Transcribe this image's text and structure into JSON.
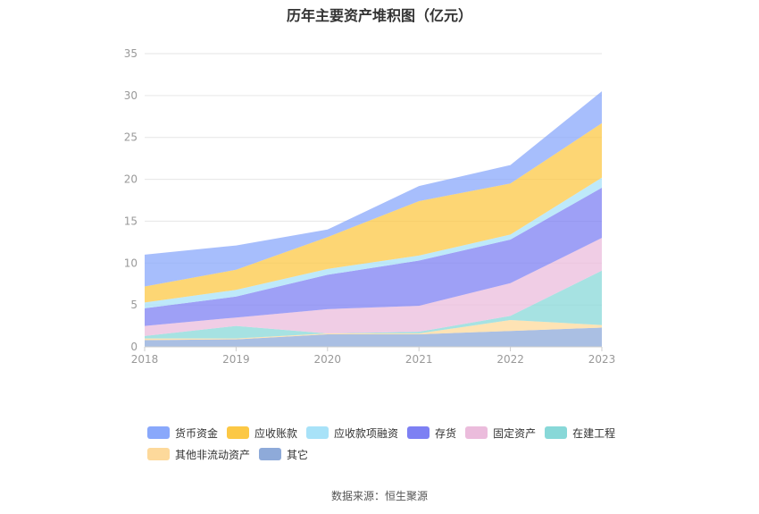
{
  "chart_data": {
    "type": "area",
    "stacked": true,
    "title": "历年主要资产堆积图（亿元）",
    "x": [
      "2018",
      "2019",
      "2020",
      "2021",
      "2022",
      "2023"
    ],
    "ylim": [
      0,
      35
    ],
    "yticks": [
      0,
      5,
      10,
      15,
      20,
      25,
      30,
      35
    ],
    "grid": true,
    "legend_position": "bottom",
    "series": [
      {
        "name": "其它",
        "color": "#8eaad9",
        "values": [
          0.8,
          0.9,
          1.5,
          1.5,
          1.9,
          2.3
        ]
      },
      {
        "name": "其他非流动资产",
        "color": "#fdd99b",
        "values": [
          0.2,
          0.1,
          0.1,
          0.1,
          1.3,
          0.3
        ]
      },
      {
        "name": "在建工程",
        "color": "#88d8d8",
        "values": [
          0.3,
          1.5,
          0.0,
          0.2,
          0.5,
          6.5
        ]
      },
      {
        "name": "固定资产",
        "color": "#ebbcdc",
        "values": [
          1.2,
          1.0,
          2.9,
          3.1,
          3.9,
          3.9
        ]
      },
      {
        "name": "存货",
        "color": "#7d80f3",
        "values": [
          2.1,
          2.5,
          4.1,
          5.4,
          5.2,
          6.0
        ]
      },
      {
        "name": "应收款项融资",
        "color": "#a8e2f8",
        "values": [
          0.7,
          0.8,
          0.7,
          0.6,
          0.6,
          1.2
        ]
      },
      {
        "name": "应收账款",
        "color": "#fcc845",
        "values": [
          1.9,
          2.4,
          3.8,
          6.5,
          6.1,
          6.5
        ]
      },
      {
        "name": "货币资金",
        "color": "#89a8fb",
        "values": [
          3.8,
          2.9,
          0.9,
          1.8,
          2.2,
          3.8
        ]
      }
    ]
  },
  "legend_order": [
    {
      "name": "货币资金",
      "color": "#89a8fb"
    },
    {
      "name": "应收账款",
      "color": "#fcc845"
    },
    {
      "name": "应收款项融资",
      "color": "#a8e2f8"
    },
    {
      "name": "存货",
      "color": "#7d80f3"
    },
    {
      "name": "固定资产",
      "color": "#ebbcdc"
    },
    {
      "name": "在建工程",
      "color": "#88d8d8"
    },
    {
      "name": "其他非流动资产",
      "color": "#fdd99b"
    },
    {
      "name": "其它",
      "color": "#8eaad9"
    }
  ],
  "source": "数据来源：恒生聚源"
}
